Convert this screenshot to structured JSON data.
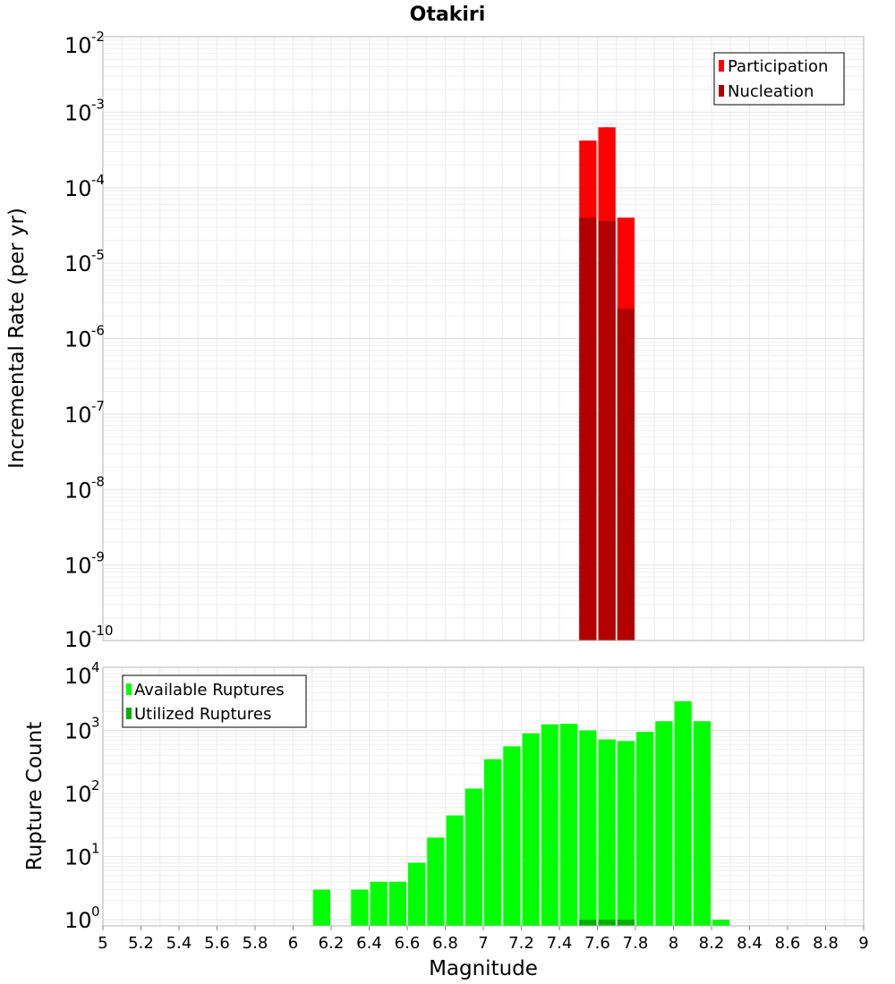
{
  "chart_data": [
    {
      "type": "bar",
      "title": "Otakiri",
      "xlabel": "",
      "ylabel": "Incremental Rate (per yr)",
      "yscale": "log",
      "xlim": [
        5,
        9
      ],
      "ylim": [
        1e-10,
        0.01
      ],
      "y_tick_exponents": [
        -2,
        -3,
        -4,
        -5,
        -6,
        -7,
        -8,
        -9,
        -10
      ],
      "grid": true,
      "legend_position": "top-right",
      "bin_width": 0.1,
      "series": [
        {
          "name": "Participation",
          "color": "#ff0000",
          "x": [
            7.55,
            7.65,
            7.75
          ],
          "values": [
            0.00042,
            0.00063,
            4e-05
          ]
        },
        {
          "name": "Nucleation",
          "color": "#b20000",
          "x": [
            7.55,
            7.65,
            7.75
          ],
          "values": [
            4e-05,
            3.6e-05,
            2.5e-06
          ]
        }
      ]
    },
    {
      "type": "bar",
      "title": "",
      "xlabel": "Magnitude",
      "ylabel": "Rupture Count",
      "yscale": "log",
      "xlim": [
        5,
        9
      ],
      "ylim": [
        0.8,
        10000
      ],
      "y_tick_exponents": [
        4,
        3,
        2,
        1,
        0
      ],
      "x_ticks": [
        "5",
        "5.2",
        "5.4",
        "5.6",
        "5.8",
        "6",
        "6.2",
        "6.4",
        "6.6",
        "6.8",
        "7",
        "7.2",
        "7.4",
        "7.6",
        "7.8",
        "8",
        "8.2",
        "8.4",
        "8.6",
        "8.8",
        "9"
      ],
      "grid": true,
      "legend_position": "top-left",
      "bin_width": 0.1,
      "series": [
        {
          "name": "Available Ruptures",
          "color": "#00ff00",
          "x": [
            6.15,
            6.35,
            6.45,
            6.55,
            6.65,
            6.75,
            6.85,
            6.95,
            7.05,
            7.15,
            7.25,
            7.35,
            7.45,
            7.55,
            7.65,
            7.75,
            7.85,
            7.95,
            8.05,
            8.15,
            8.25
          ],
          "values": [
            3,
            3,
            4,
            4,
            8,
            20,
            45,
            120,
            350,
            560,
            900,
            1250,
            1280,
            1000,
            720,
            680,
            950,
            1400,
            2900,
            1400,
            1
          ]
        },
        {
          "name": "Utilized Ruptures",
          "color": "#00b000",
          "x": [
            7.55,
            7.65,
            7.75
          ],
          "values": [
            1,
            1,
            1
          ]
        }
      ]
    }
  ]
}
